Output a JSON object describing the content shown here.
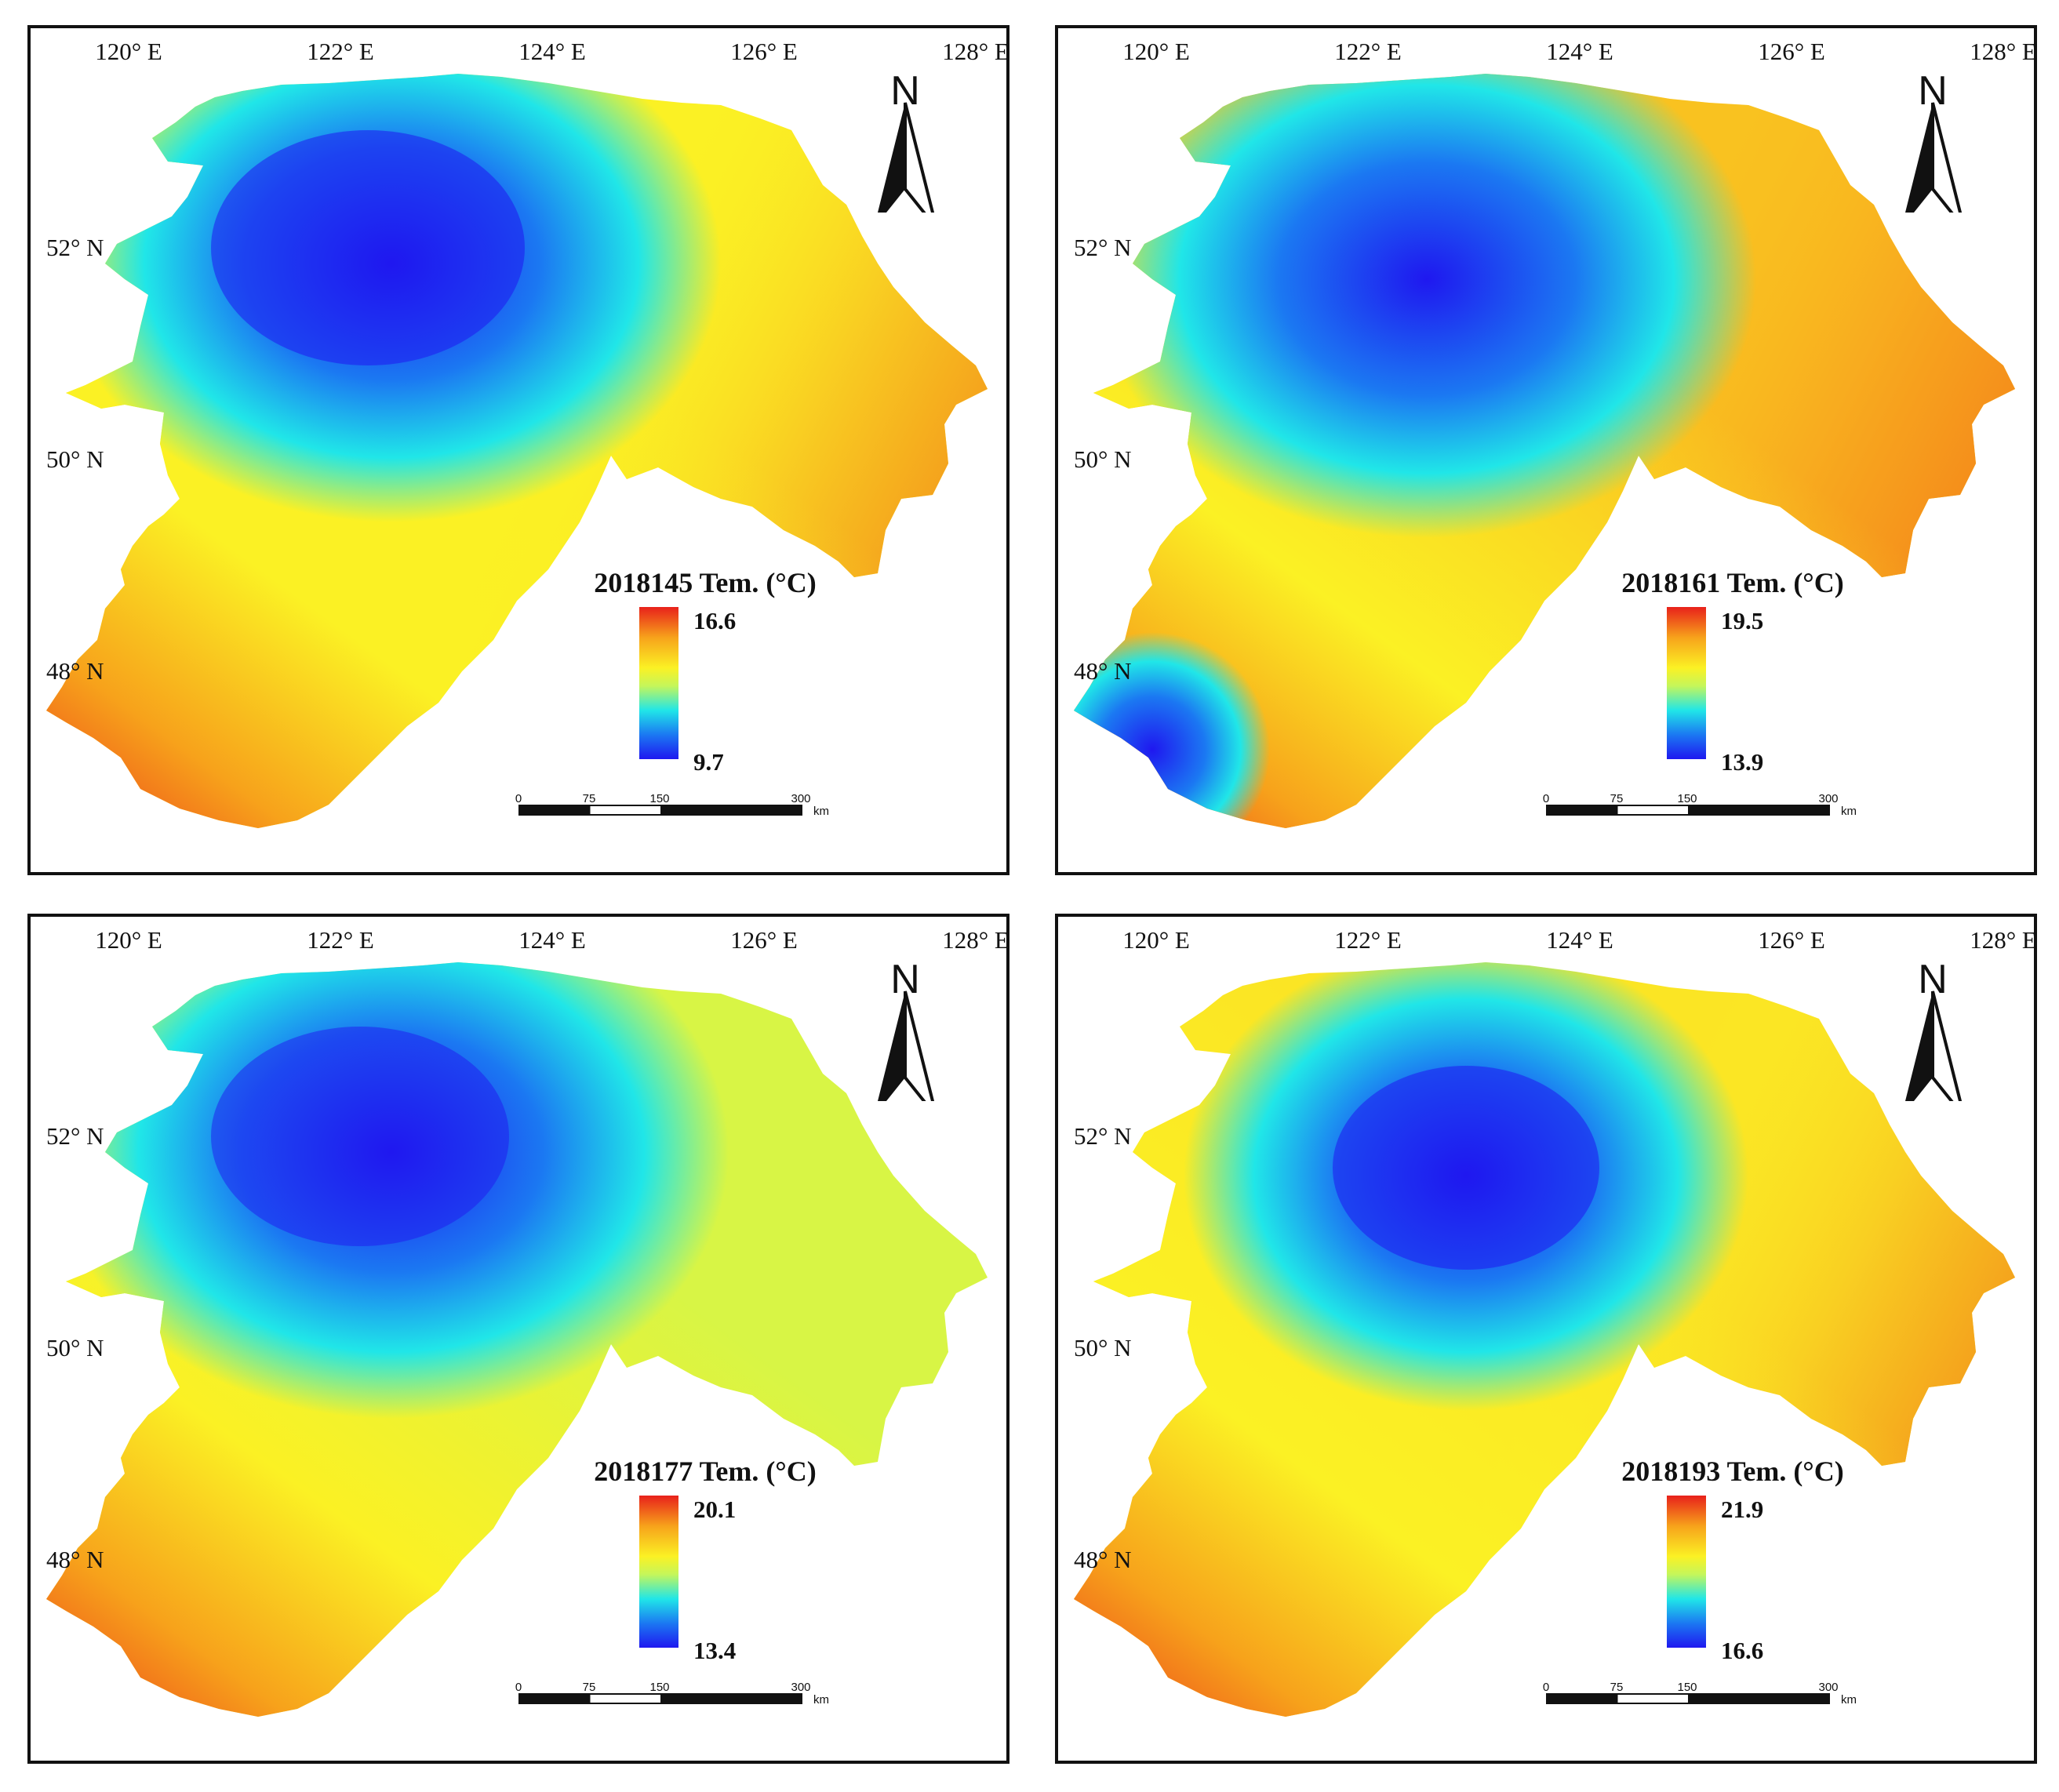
{
  "figure": {
    "longitude_labels": [
      "120° E",
      "122° E",
      "124° E",
      "126° E",
      "128° E"
    ],
    "latitude_labels": [
      "52° N",
      "50° N",
      "48° N"
    ],
    "north_letter": "N",
    "scale_labels": [
      "0",
      "75",
      "150",
      "300"
    ],
    "scale_unit": "km",
    "colormap": [
      "#1f18f0",
      "#1b78f2",
      "#20e6e8",
      "#c4f65b",
      "#fbf124",
      "#f7a21b",
      "#e8211b"
    ],
    "panels": [
      {
        "title": "2018145 Tem. (°C)",
        "max": "16.6",
        "min": "9.7"
      },
      {
        "title": "2018161 Tem. (°C)",
        "max": "19.5",
        "min": "13.9"
      },
      {
        "title": "2018177 Tem. (°C)",
        "max": "20.1",
        "min": "13.4"
      },
      {
        "title": "2018193 Tem. (°C)",
        "max": "21.9",
        "min": "16.6"
      }
    ]
  }
}
